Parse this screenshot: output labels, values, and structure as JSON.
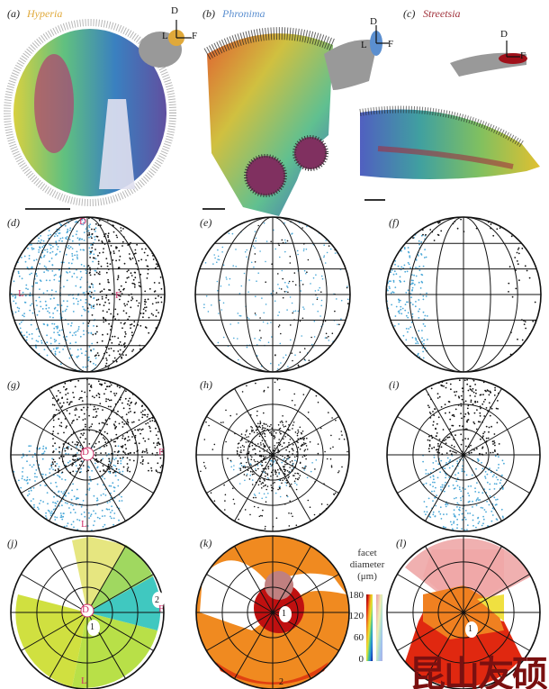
{
  "panels": {
    "a": {
      "label": "(a)",
      "species": "Hyperia",
      "color": "#e0a93a"
    },
    "b": {
      "label": "(b)",
      "species": "Phronima",
      "color": "#5b8fd0"
    },
    "c": {
      "label": "(c)",
      "species": "Streetsia",
      "color": "#a0303a"
    },
    "d": "(d)",
    "e": "(e)",
    "f": "(f)",
    "g": "(g)",
    "h": "(h)",
    "i": "(i)",
    "j": "(j)",
    "k": "(k)",
    "l": "(l)"
  },
  "orientation": {
    "dorsal": "D",
    "lateral": "L",
    "frontal": "F"
  },
  "annotations": {
    "one": "1",
    "two": "2"
  },
  "colorbar": {
    "title_lines": [
      "facet",
      "diameter",
      "(μm)"
    ],
    "ticks": [
      "180",
      "120",
      "60",
      "0"
    ],
    "colors": [
      "#7a0000",
      "#e02010",
      "#f0a020",
      "#e8e830",
      "#40c0a0",
      "#2080e0",
      "#000080"
    ]
  },
  "watermark": "昆山友硕"
}
